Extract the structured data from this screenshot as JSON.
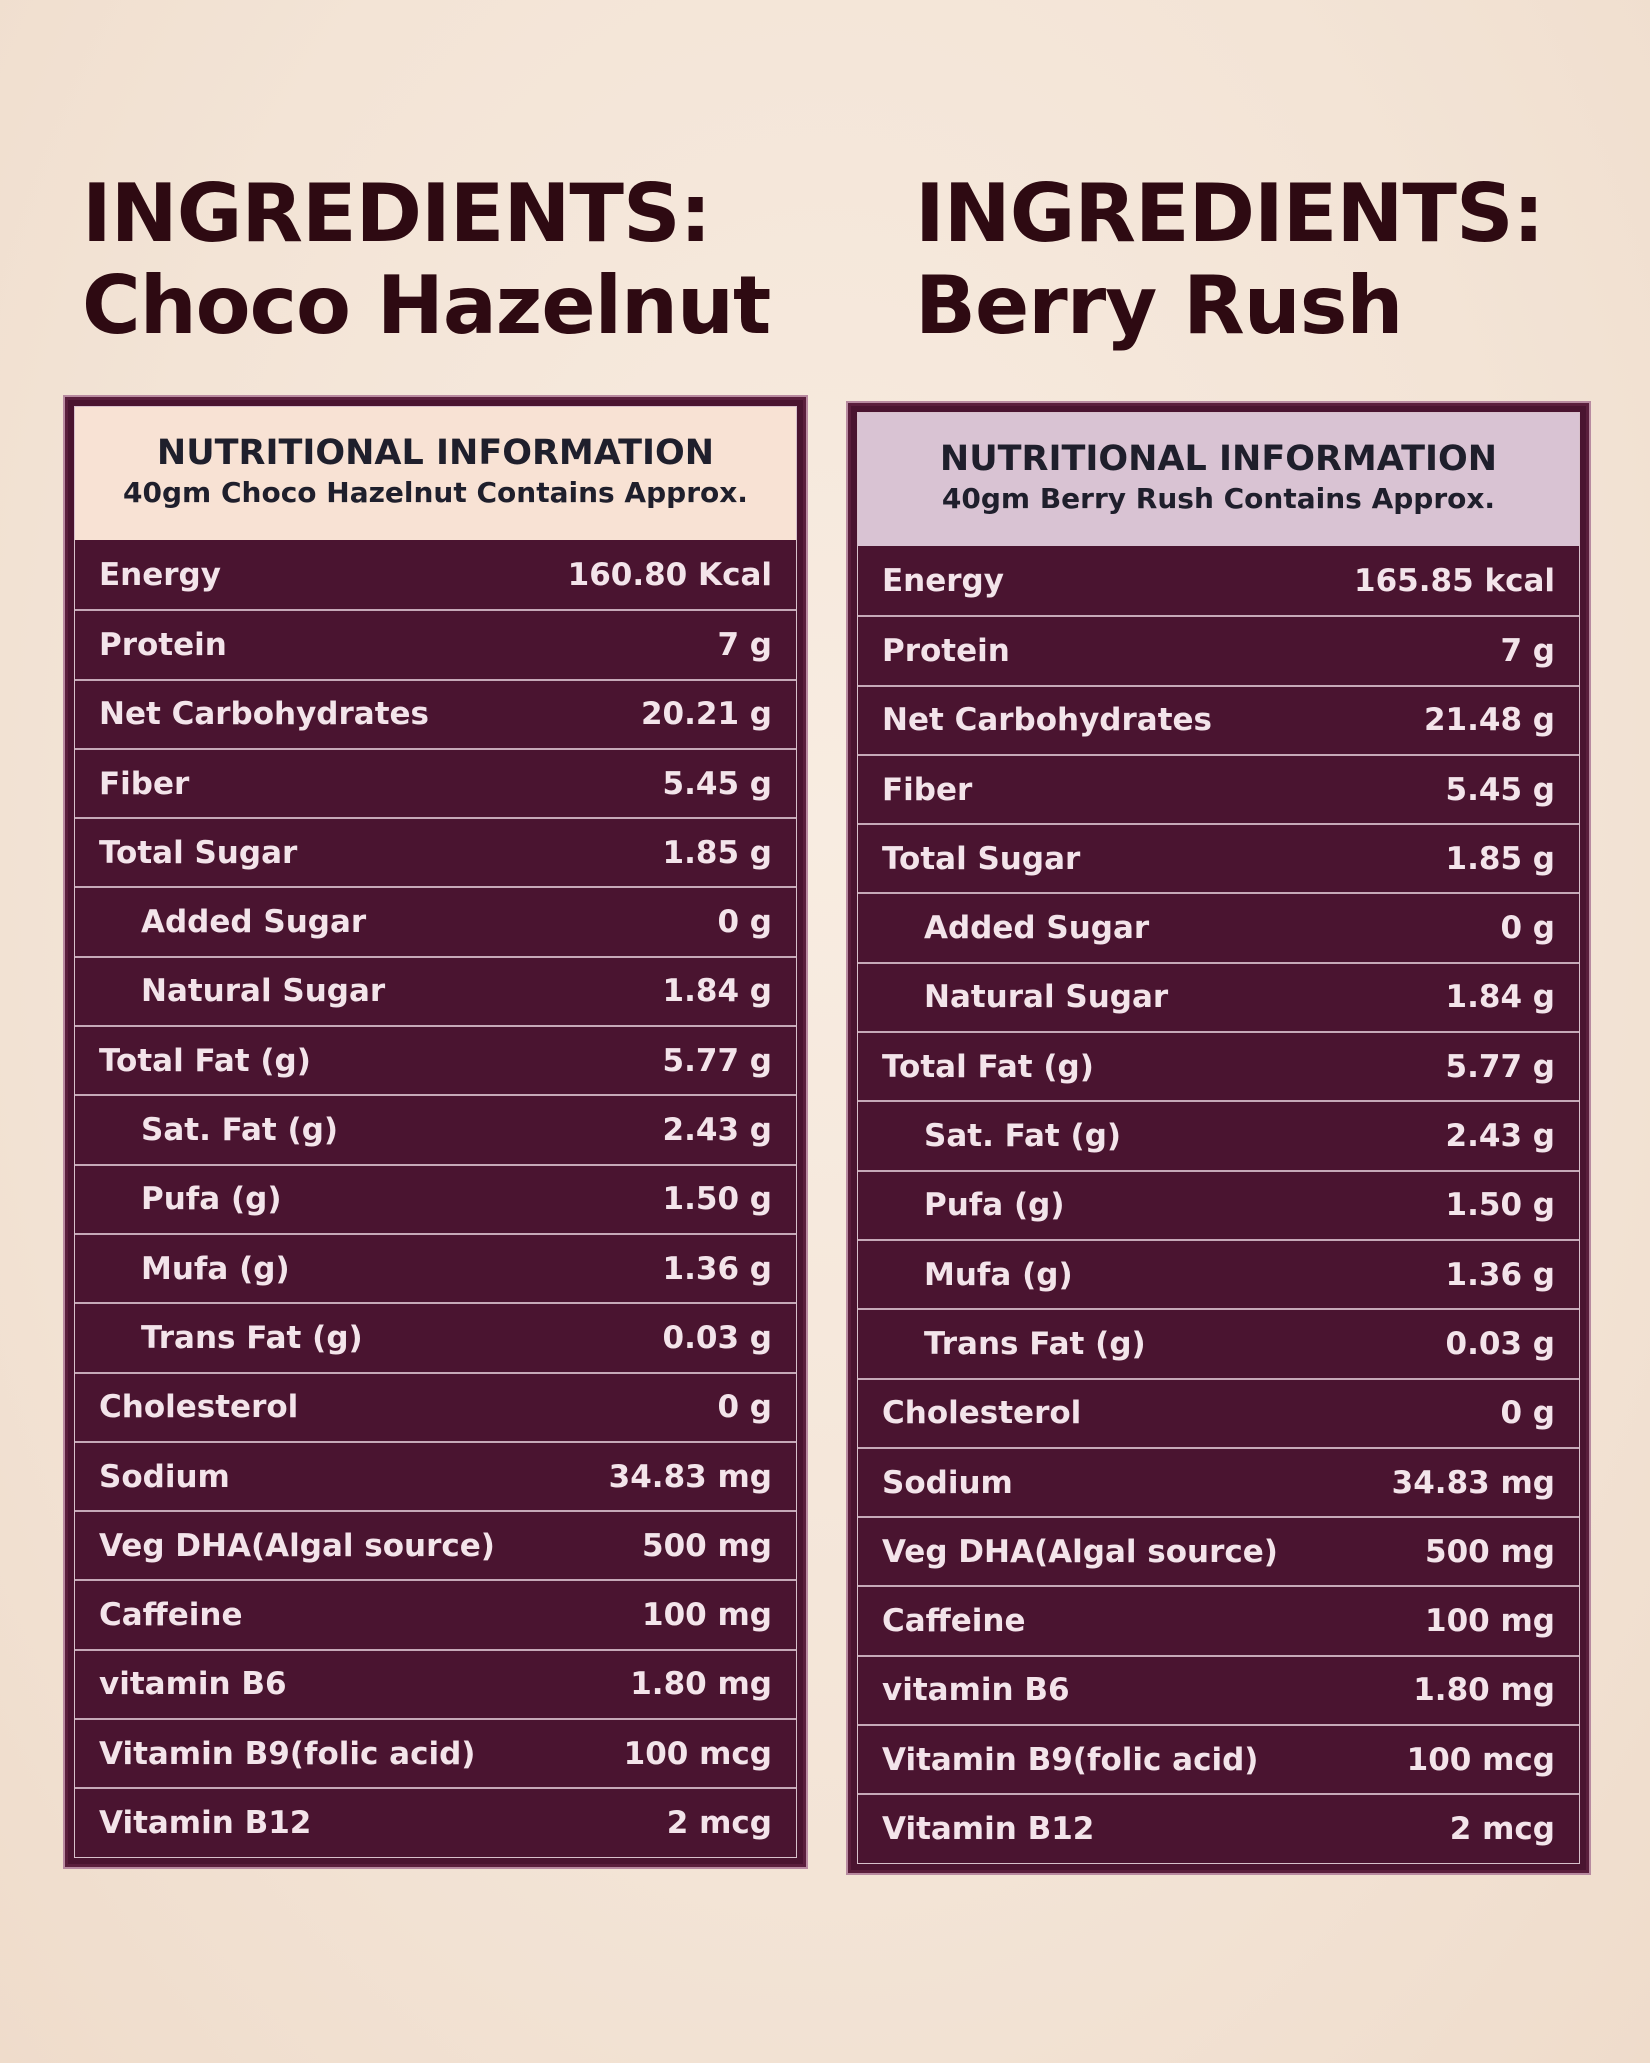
{
  "left": {
    "heading_line1": "INGREDIENTS:",
    "heading_line2": "Choco Hazelnut",
    "title": "NUTRITIONAL INFORMATION",
    "subtitle": "40gm Choco Hazelnut Contains Approx.",
    "rows": [
      {
        "label": "Energy",
        "value": "160.80 Kcal",
        "sub": false
      },
      {
        "label": "Protein",
        "value": "7 g",
        "sub": false
      },
      {
        "label": "Net Carbohydrates",
        "value": "20.21 g",
        "sub": false
      },
      {
        "label": "Fiber",
        "value": "5.45 g",
        "sub": false
      },
      {
        "label": "Total Sugar",
        "value": "1.85 g",
        "sub": false
      },
      {
        "label": "Added Sugar",
        "value": "0 g",
        "sub": true
      },
      {
        "label": "Natural Sugar",
        "value": "1.84 g",
        "sub": true
      },
      {
        "label": "Total Fat (g)",
        "value": "5.77 g",
        "sub": false
      },
      {
        "label": "Sat. Fat (g)",
        "value": "2.43 g",
        "sub": true
      },
      {
        "label": "Pufa (g)",
        "value": "1.50 g",
        "sub": true
      },
      {
        "label": "Mufa (g)",
        "value": "1.36 g",
        "sub": true
      },
      {
        "label": "Trans Fat (g)",
        "value": "0.03 g",
        "sub": true
      },
      {
        "label": "Cholesterol",
        "value": "0 g",
        "sub": false
      },
      {
        "label": "Sodium",
        "value": "34.83 mg",
        "sub": false
      },
      {
        "label": "Veg DHA(Algal source)",
        "value": "500 mg",
        "sub": false
      },
      {
        "label": "Caffeine",
        "value": "100 mg",
        "sub": false
      },
      {
        "label": "vitamin B6",
        "value": "1.80 mg",
        "sub": false
      },
      {
        "label": "Vitamin B9(folic acid)",
        "value": "100 mcg",
        "sub": false
      },
      {
        "label": "Vitamin B12",
        "value": "2 mcg",
        "sub": false
      }
    ]
  },
  "right": {
    "heading_line1": "INGREDIENTS:",
    "heading_line2": "Berry Rush",
    "title": "NUTRITIONAL INFORMATION",
    "subtitle": "40gm Berry Rush Contains Approx.",
    "rows": [
      {
        "label": "Energy",
        "value": "165.85 kcal",
        "sub": false
      },
      {
        "label": "Protein",
        "value": "7 g",
        "sub": false
      },
      {
        "label": "Net Carbohydrates",
        "value": "21.48 g",
        "sub": false
      },
      {
        "label": "Fiber",
        "value": "5.45 g",
        "sub": false
      },
      {
        "label": "Total Sugar",
        "value": "1.85 g",
        "sub": false
      },
      {
        "label": "Added Sugar",
        "value": "0 g",
        "sub": true
      },
      {
        "label": "Natural Sugar",
        "value": "1.84 g",
        "sub": true
      },
      {
        "label": "Total Fat (g)",
        "value": "5.77 g",
        "sub": false
      },
      {
        "label": "Sat. Fat (g)",
        "value": "2.43 g",
        "sub": true
      },
      {
        "label": "Pufa (g)",
        "value": "1.50 g",
        "sub": true
      },
      {
        "label": "Mufa (g)",
        "value": "1.36 g",
        "sub": true
      },
      {
        "label": "Trans Fat (g)",
        "value": "0.03 g",
        "sub": true
      },
      {
        "label": "Cholesterol",
        "value": "0 g",
        "sub": false
      },
      {
        "label": "Sodium",
        "value": "34.83 mg",
        "sub": false
      },
      {
        "label": "Veg DHA(Algal source)",
        "value": "500 mg",
        "sub": false
      },
      {
        "label": "Caffeine",
        "value": "100 mg",
        "sub": false
      },
      {
        "label": "vitamin B6",
        "value": "1.80 mg",
        "sub": false
      },
      {
        "label": "Vitamin B9(folic acid)",
        "value": "100 mcg",
        "sub": false
      },
      {
        "label": "Vitamin B12",
        "value": "2 mcg",
        "sub": false
      }
    ]
  }
}
